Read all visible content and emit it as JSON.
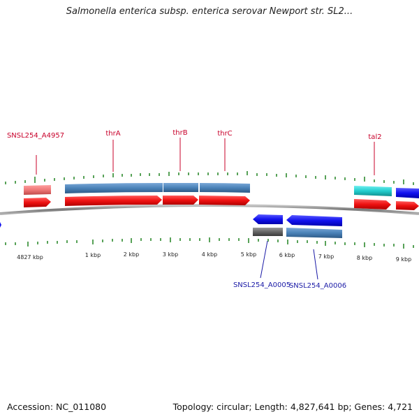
{
  "header": {
    "title": "Salmonella enterica subsp. enterica serovar Newport str. SL2..."
  },
  "footer": {
    "accession": "Accession: NC_011080",
    "summary": "Topology: circular; Length: 4,827,641 bp; Genes: 4,721"
  },
  "tick_labels": [
    "4827 kbp",
    "1 kbp",
    "2 kbp",
    "3 kbp",
    "4 kbp",
    "5 kbp",
    "6 kbp",
    "7 kbp",
    "8 kbp",
    "9 kbp"
  ],
  "genes_top": [
    {
      "name": "SNSL254_A4957"
    },
    {
      "name": "thrA"
    },
    {
      "name": "thrB"
    },
    {
      "name": "thrC"
    },
    {
      "name": "tal2"
    }
  ],
  "genes_bottom": [
    {
      "name": "SNSL254_A0005"
    },
    {
      "name": "SNSL254_A0006"
    }
  ],
  "colors": {
    "forward_cds": "#ee1111",
    "reverse_cds": "#1111ee",
    "gene_track_blue": "#4a82b8",
    "gene_track_pink": "#ee7777",
    "gene_track_cyan": "#22cccc",
    "gene_track_gray": "#666666",
    "backbone": "#888888",
    "tick": "#2e8b2e",
    "top_label": "#c8002a",
    "bottom_label": "#1a1aa6"
  }
}
